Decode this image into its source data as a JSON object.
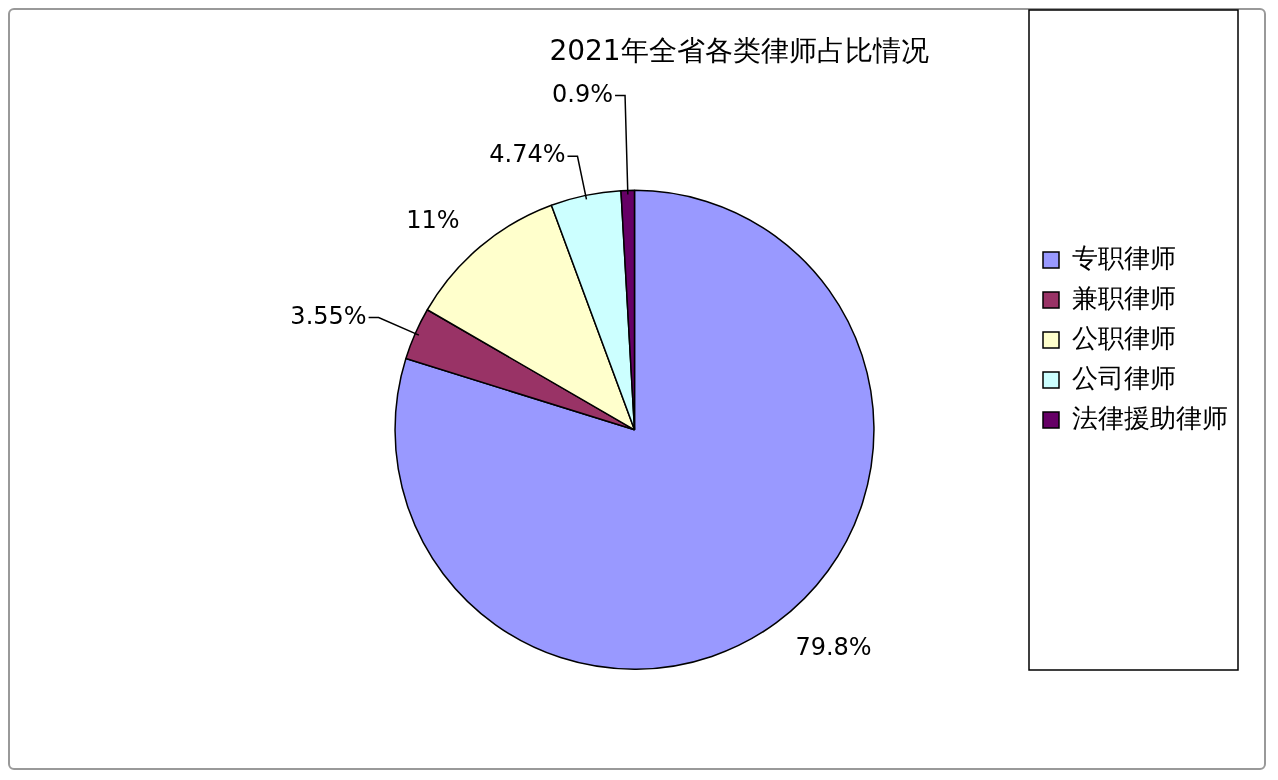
{
  "chart_data": {
    "type": "pie",
    "title": "2021年全省各类律师占比情况",
    "categories": [
      "专职律师",
      "兼职律师",
      "公职律师",
      "公司律师",
      "法律援助律师"
    ],
    "values": [
      79.8,
      3.55,
      11,
      4.74,
      0.9
    ],
    "colors": [
      "#9999ff",
      "#993366",
      "#ffffcc",
      "#ccffff",
      "#660066"
    ],
    "value_labels": [
      "79.8%",
      "3.55%",
      "11%",
      "4.74%",
      "0.9%"
    ],
    "legend": "right"
  }
}
